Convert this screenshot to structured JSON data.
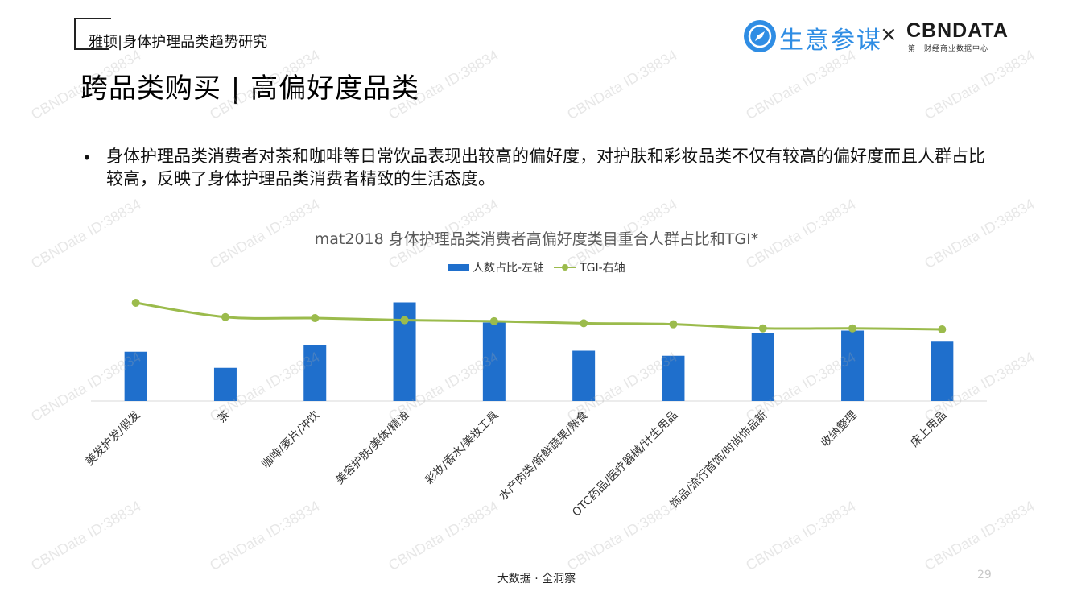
{
  "header": {
    "report_label": "雅顿|身体护理品类趋势研究",
    "page_title": "跨品类购买 | 高偏好度品类"
  },
  "logos": {
    "brand_name": "生意参谋",
    "separator": "×",
    "partner_name": "CBNDATA",
    "partner_sub": "第一财经商业数据中心"
  },
  "bullet": {
    "symbol": "•",
    "text": "身体护理品类消费者对茶和咖啡等日常饮品表现出较高的偏好度，对护肤和彩妆品类不仅有较高的偏好度而且人群占比较高，反映了身体护理品类消费者精致的生活态度。"
  },
  "watermark_text": "CBNData ID:38834",
  "footer": {
    "text": "大数据 · 全洞察",
    "page_number": "29"
  },
  "colors": {
    "bar": "#1f6fcc",
    "line": "#9bbb4c",
    "brand": "#2f8de4"
  },
  "chart_data": {
    "type": "bar",
    "title": "mat2018 身体护理品类消费者高偏好度类目重合人群占比和TGI*",
    "legend_position": "top-center",
    "grid": false,
    "y_axis_visible": false,
    "categories": [
      "美发护发/假发",
      "茶",
      "咖啡/麦片/冲饮",
      "美容护肤/美体/精油",
      "彩妆/香水/美妆工具",
      "水产肉类/新鲜蔬果/熟食",
      "OTC药品/医疗器械/计生用品",
      "饰品/流行首饰/时尚饰品新",
      "收纳整理",
      "床上用品"
    ],
    "series": [
      {
        "name": "人数占比-左轴",
        "type": "bar",
        "axis": "left",
        "values": [
          0.49,
          0.33,
          0.56,
          0.98,
          0.78,
          0.5,
          0.45,
          0.68,
          0.7,
          0.59
        ]
      },
      {
        "name": "TGI-右轴",
        "type": "line",
        "axis": "right",
        "values": [
          0.96,
          0.82,
          0.81,
          0.79,
          0.78,
          0.76,
          0.75,
          0.71,
          0.71,
          0.7
        ]
      }
    ]
  }
}
